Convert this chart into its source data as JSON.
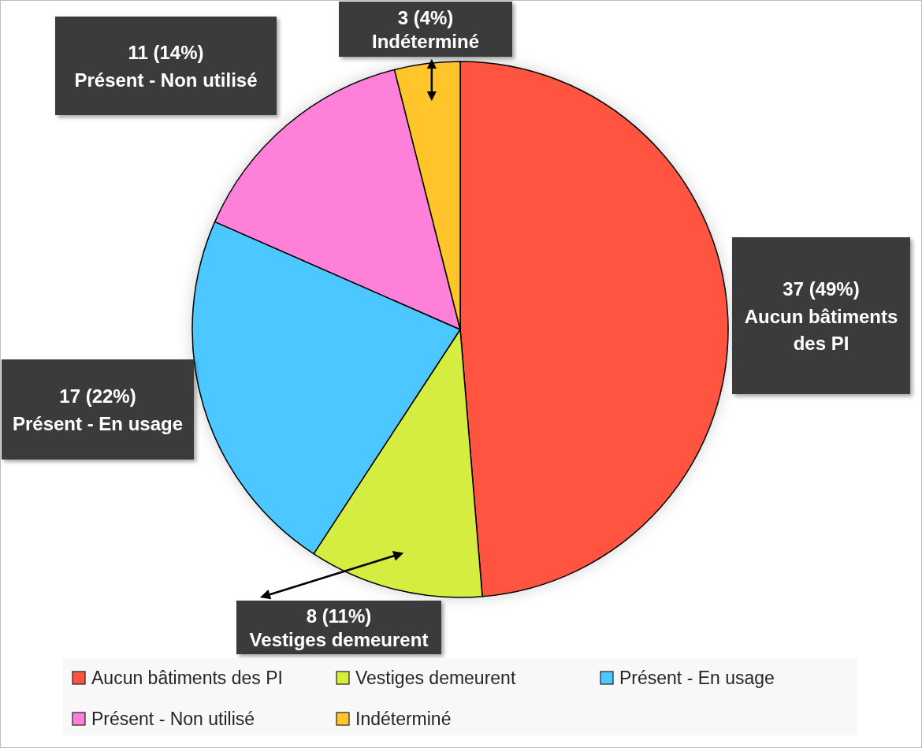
{
  "chart_data": {
    "type": "pie",
    "categories": [
      "Aucun bâtiments des PI",
      "Vestiges demeurent",
      "Présent - En usage",
      "Présent - Non utilisé",
      "Indéterminé"
    ],
    "values": [
      37,
      8,
      17,
      11,
      3
    ],
    "colors": [
      "#ff5540",
      "#d4ed3f",
      "#4dc7ff",
      "#ff80d9",
      "#ffc52b"
    ],
    "value_labels": [
      "37 (49%)",
      "8 (11%)",
      "17 (22%)",
      "11 (14%)",
      "3 (4%)"
    ],
    "legend": "bottom"
  }
}
